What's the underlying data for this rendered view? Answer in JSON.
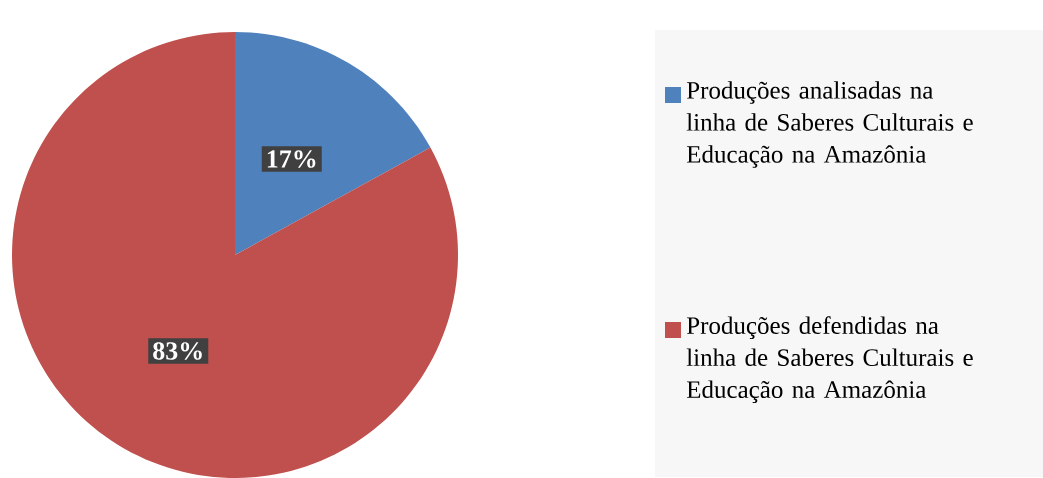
{
  "chart_data": {
    "type": "pie",
    "categories": [
      "Produções analisadas na linha de Saberes Culturais e Educação na Amazônia",
      "Produções defendidas na linha de Saberes Culturais e Educação na Amazônia"
    ],
    "values": [
      17,
      83
    ],
    "colors": [
      "#4f81bd",
      "#c0504d"
    ],
    "value_labels": [
      "17%",
      "83%"
    ],
    "legend": "right"
  }
}
